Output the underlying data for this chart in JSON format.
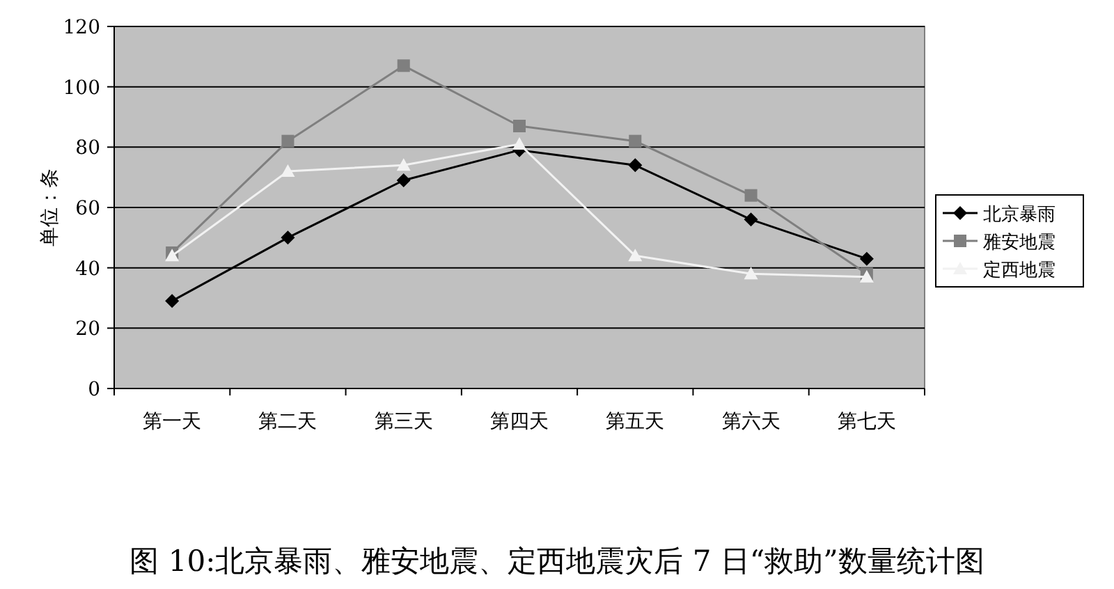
{
  "chart_data": {
    "type": "line",
    "title": "图 10:北京暴雨、雅安地震、定西地震灾后 7 日“救助”数量统计图",
    "ylabel": "单位：条",
    "categories": [
      "第一天",
      "第二天",
      "第三天",
      "第四天",
      "第五天",
      "第六天",
      "第七天"
    ],
    "series": [
      {
        "name": "北京暴雨",
        "color": "#000000",
        "marker": "diamond",
        "values": [
          29,
          50,
          69,
          79,
          74,
          56,
          43
        ]
      },
      {
        "name": "雅安地震",
        "color": "#7f7f7f",
        "marker": "square",
        "values": [
          45,
          82,
          107,
          87,
          82,
          64,
          38
        ]
      },
      {
        "name": "定西地震",
        "color": "#f2f2f2",
        "marker": "triangle",
        "values": [
          44,
          72,
          74,
          81,
          44,
          38,
          37
        ]
      }
    ],
    "ylim": [
      0,
      120
    ],
    "yticks": [
      0,
      20,
      40,
      60,
      80,
      100,
      120
    ],
    "grid": "y",
    "legend": "right",
    "line_style": "solid"
  }
}
